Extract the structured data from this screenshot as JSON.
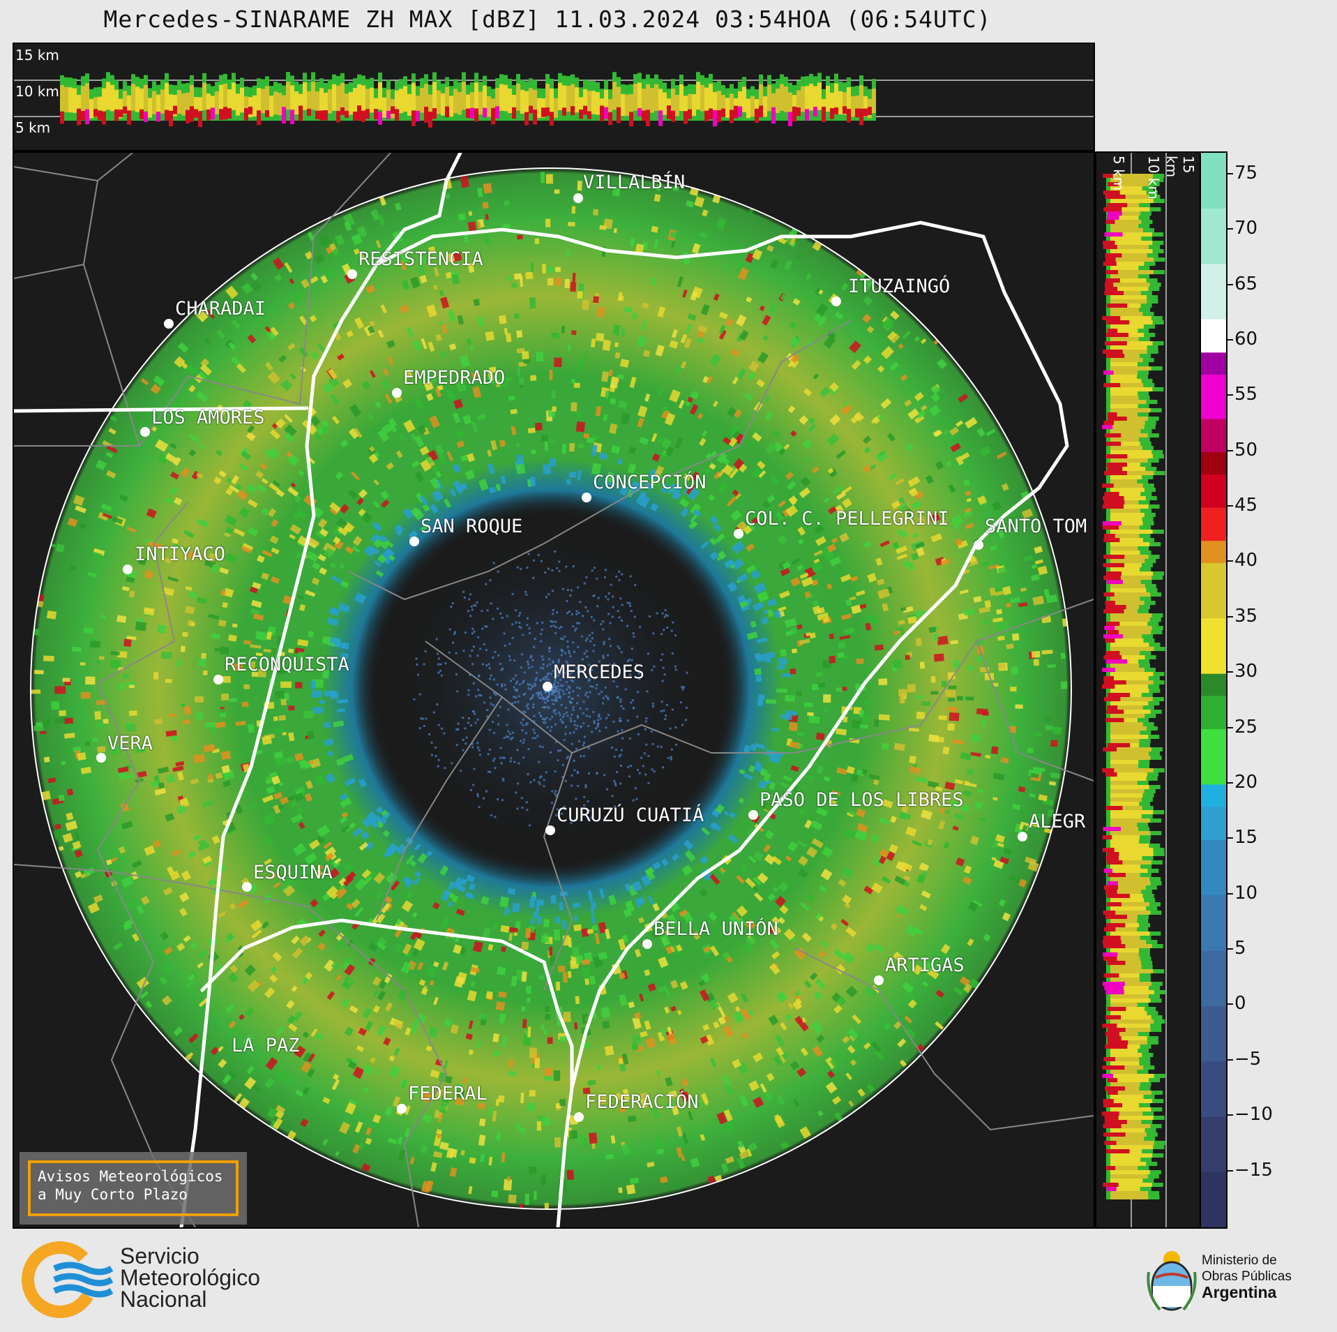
{
  "header": {
    "title": "Mercedes-SINARAME ZH MAX [dBZ] 11.03.2024 03:54HOA (06:54UTC)"
  },
  "top_panel": {
    "height_labels": [
      "15 km",
      "10 km",
      "5 km"
    ]
  },
  "side_panel": {
    "height_labels": [
      "5 km",
      "10 km",
      "15 km"
    ]
  },
  "colorbar": {
    "ticks": [
      "75",
      "70",
      "65",
      "60",
      "55",
      "50",
      "45",
      "40",
      "35",
      "30",
      "25",
      "20",
      "15",
      "10",
      "5",
      "0",
      "−5",
      "−10",
      "−15"
    ],
    "min": -20,
    "max": 77,
    "stops": [
      {
        "v": -20,
        "c": "#2e3360"
      },
      {
        "v": -15,
        "c": "#353d6e"
      },
      {
        "v": -10,
        "c": "#3a4b80"
      },
      {
        "v": -5,
        "c": "#3c5b90"
      },
      {
        "v": 0,
        "c": "#3d6aa0"
      },
      {
        "v": 5,
        "c": "#3b7ab0"
      },
      {
        "v": 10,
        "c": "#3388c0"
      },
      {
        "v": 15,
        "c": "#2fa0d0"
      },
      {
        "v": 18,
        "c": "#20b0e0"
      },
      {
        "v": 20,
        "c": "#40e040"
      },
      {
        "v": 25,
        "c": "#30b030"
      },
      {
        "v": 28,
        "c": "#2a8a2a"
      },
      {
        "v": 30,
        "c": "#f0e030"
      },
      {
        "v": 35,
        "c": "#d8c830"
      },
      {
        "v": 40,
        "c": "#e09020"
      },
      {
        "v": 42,
        "c": "#f02020"
      },
      {
        "v": 45,
        "c": "#d00020"
      },
      {
        "v": 48,
        "c": "#a00010"
      },
      {
        "v": 50,
        "c": "#c00060"
      },
      {
        "v": 53,
        "c": "#f000d0"
      },
      {
        "v": 57,
        "c": "#a000a0"
      },
      {
        "v": 59,
        "c": "#ffffff"
      },
      {
        "v": 62,
        "c": "#d0f0e8"
      },
      {
        "v": 67,
        "c": "#a0e8d0"
      },
      {
        "v": 72,
        "c": "#80e0c0"
      },
      {
        "v": 77,
        "c": "#70d8b8"
      }
    ]
  },
  "cities": [
    {
      "name": "VILLALBÍN"
    },
    {
      "name": "RESISTENCIA"
    },
    {
      "name": "CHARADAI"
    },
    {
      "name": "ITUZAINGÓ"
    },
    {
      "name": "EMPEDRADO"
    },
    {
      "name": "LOS AMORES"
    },
    {
      "name": "CONCEPCIÓN"
    },
    {
      "name": "SAN ROQUE"
    },
    {
      "name": "COL. C. PELLEGRINI"
    },
    {
      "name": "SANTO TOM"
    },
    {
      "name": "INTIYACO"
    },
    {
      "name": "MERCEDES"
    },
    {
      "name": "RECONQUISTA"
    },
    {
      "name": "VERA"
    },
    {
      "name": "PASO DE LOS LIBRES"
    },
    {
      "name": "CURUZÚ CUATIÁ"
    },
    {
      "name": "ALEGR"
    },
    {
      "name": "ESQUINA"
    },
    {
      "name": "BELLA UNIÓN"
    },
    {
      "name": "ARTIGAS"
    },
    {
      "name": "LA PAZ"
    },
    {
      "name": "FEDERAL"
    },
    {
      "name": "FEDERACIÓN"
    }
  ],
  "notice": {
    "line1": "Avisos Meteorológicos",
    "line2": "a Muy Corto Plazo"
  },
  "footer": {
    "smn": {
      "line1": "Servicio",
      "line2": "Meteorológico",
      "line3": "Nacional"
    },
    "ministry": {
      "line1": "Ministerio de",
      "line2": "Obras Públicas",
      "line3": "Argentina"
    }
  }
}
